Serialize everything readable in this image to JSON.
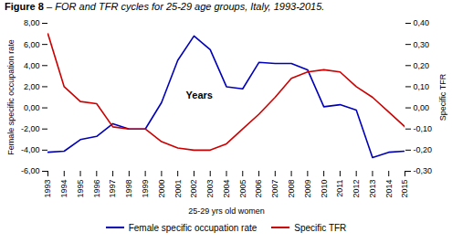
{
  "chart_data": {
    "type": "line",
    "title": "Figure 8",
    "subtitle": "– FOR and TFR cycles for 25-29 age groups, Italy, 1993-2015.",
    "xlabel": "25-29 yrs old women",
    "ylabel": "Female specific occupation rate",
    "y2label": "Specific TFR",
    "x": [
      1993,
      1994,
      1995,
      1996,
      1997,
      1998,
      1999,
      2000,
      2001,
      2002,
      2003,
      2004,
      2005,
      2006,
      2007,
      2008,
      2009,
      2010,
      2011,
      2012,
      2013,
      2014,
      2015
    ],
    "xlim": [
      1993,
      2015
    ],
    "xticks": [
      1993,
      1994,
      1995,
      1996,
      1997,
      1998,
      1999,
      2000,
      2001,
      2002,
      2003,
      2004,
      2005,
      2006,
      2007,
      2008,
      2009,
      2010,
      2011,
      2012,
      2013,
      2014,
      2015
    ],
    "ylim": [
      -6.0,
      8.0
    ],
    "yticks": [
      {
        "value": -6.0,
        "label": "-6,00"
      },
      {
        "value": -4.0,
        "label": "-4,00"
      },
      {
        "value": -2.0,
        "label": "-2,00"
      },
      {
        "value": 0.0,
        "label": "0,00"
      },
      {
        "value": 2.0,
        "label": "2,00"
      },
      {
        "value": 4.0,
        "label": "4,00"
      },
      {
        "value": 6.0,
        "label": "6,00"
      },
      {
        "value": 8.0,
        "label": "8,00"
      }
    ],
    "y2lim": [
      -0.3,
      0.4
    ],
    "y2ticks": [
      {
        "value": -0.3,
        "label": "-0,30"
      },
      {
        "value": -0.2,
        "label": "-0,20"
      },
      {
        "value": -0.1,
        "label": "-0,10"
      },
      {
        "value": 0.0,
        "label": "0,00"
      },
      {
        "value": 0.1,
        "label": "0,10"
      },
      {
        "value": 0.2,
        "label": "0,20"
      },
      {
        "value": 0.3,
        "label": "0,30"
      },
      {
        "value": 0.4,
        "label": "0,40"
      }
    ],
    "series": [
      {
        "name": "Female specific occupation rate",
        "color": "#0000BB",
        "values": [
          -4.2,
          -4.1,
          -3.0,
          -2.7,
          -1.5,
          -2.0,
          -2.0,
          0.5,
          4.5,
          6.8,
          5.5,
          2.0,
          1.8,
          4.3,
          4.2,
          4.2,
          3.6,
          0.1,
          0.3,
          -0.2,
          -4.7,
          -4.2,
          -4.1
        ]
      },
      {
        "name": "Specific TFR",
        "color": "#CC0000",
        "axis": "y2",
        "values": [
          0.35,
          0.1,
          0.03,
          0.02,
          -0.09,
          -0.1,
          -0.1,
          -0.16,
          -0.19,
          -0.2,
          -0.2,
          -0.17,
          -0.1,
          -0.03,
          0.05,
          0.14,
          0.17,
          0.18,
          0.17,
          0.1,
          0.05,
          -0.02,
          -0.09
        ]
      }
    ],
    "annotations": [
      {
        "text": "Years",
        "x": 2001.5,
        "y": 0.9
      }
    ],
    "legend": "bottom",
    "grid": false
  }
}
